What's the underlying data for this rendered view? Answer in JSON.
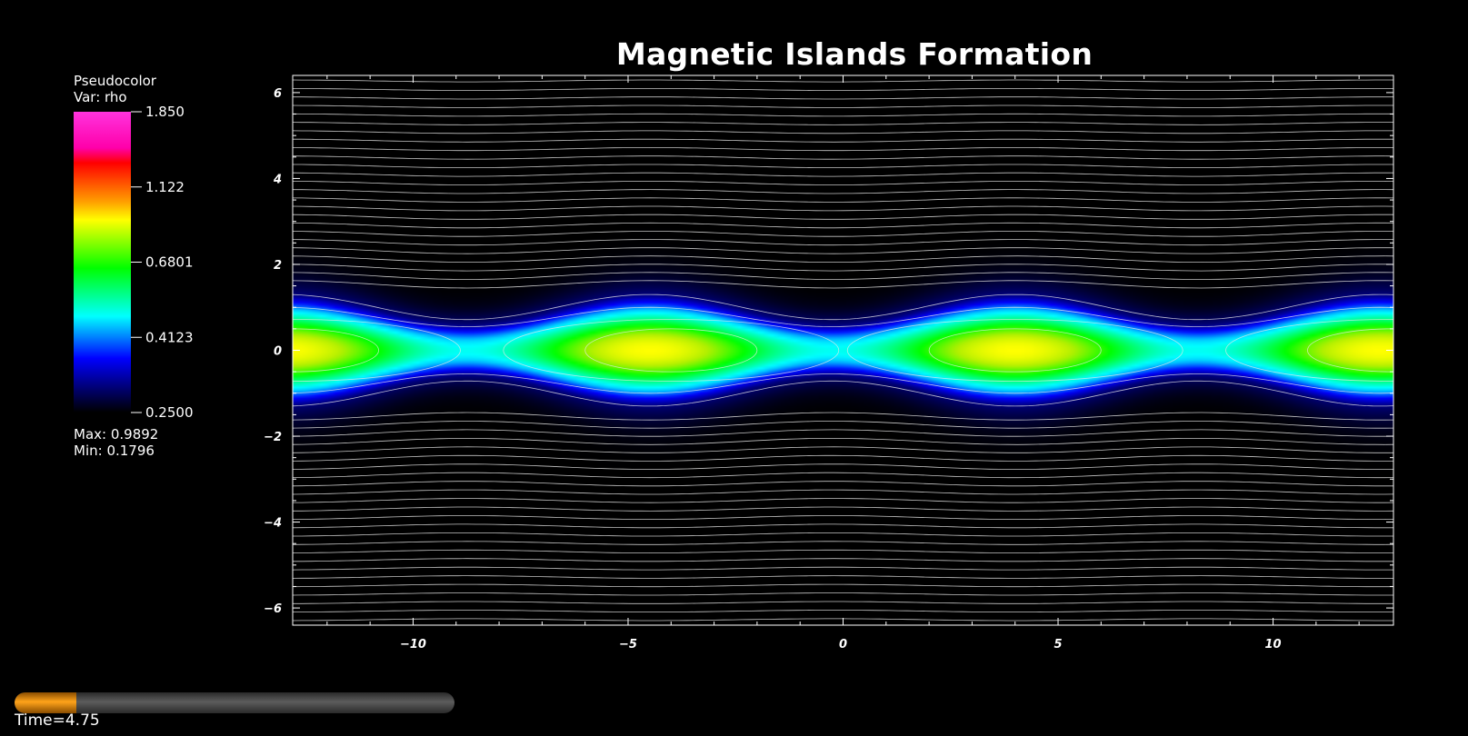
{
  "chart_data": {
    "type": "heatmap",
    "title": "Magnetic Islands Formation",
    "xlabel": "",
    "ylabel": "",
    "x_ticks": [
      -10,
      -5,
      0,
      5,
      10
    ],
    "y_ticks": [
      6,
      4,
      2,
      0,
      -2,
      -4,
      -6
    ],
    "x_tick_labels": [
      "−10",
      "−5",
      "0",
      "5",
      "10"
    ],
    "y_tick_labels": [
      "6",
      "4",
      "2",
      "0",
      "−2",
      "−4",
      "−6"
    ],
    "xlim": [
      -12.8,
      12.8
    ],
    "ylim": [
      -6.4,
      6.4
    ],
    "grid": false,
    "field": {
      "variable": "rho",
      "island_centers_x": [
        -4,
        4,
        12.8,
        -12.8
      ],
      "x_points_x": [
        0,
        8.5,
        -8.5
      ],
      "sheet_half_width": 1.2,
      "peak_value": 0.9892,
      "background_value": 0.1796
    },
    "contours": {
      "color": "#e8e8e8",
      "description_count": 70
    },
    "colorbar": {
      "labels": [
        "1.850",
        "1.122",
        "0.6801",
        "0.4123",
        "0.2500"
      ],
      "values": [
        1.85,
        1.122,
        0.6801,
        0.4123,
        0.25
      ],
      "colormap": [
        "#ff33dd",
        "#ff0000",
        "#ffff00",
        "#00ff00",
        "#00ffff",
        "#0000ff",
        "#000000"
      ]
    }
  },
  "legend": {
    "plot_type": "Pseudocolor",
    "var_line": "Var: rho",
    "max_line": "Max:  0.9892",
    "min_line": "Min:  0.1796"
  },
  "time_slider": {
    "label": "Time=4.75",
    "progress": 0.14,
    "fill_color": "#ffa31a"
  }
}
